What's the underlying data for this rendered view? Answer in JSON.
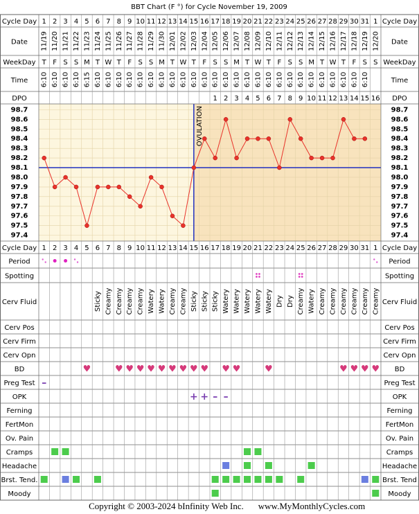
{
  "title": "BBT Chart (F °) for Cycle November 19, 2009",
  "header_rows": [
    {
      "label": "Cycle Day",
      "values": [
        1,
        2,
        3,
        4,
        5,
        6,
        7,
        8,
        9,
        10,
        11,
        12,
        13,
        14,
        15,
        16,
        17,
        18,
        19,
        20,
        21,
        22,
        23,
        24,
        25,
        26,
        27,
        28,
        29,
        30,
        31,
        1
      ]
    },
    {
      "label": "Date",
      "values": [
        "11/19",
        "11/20",
        "11/21",
        "11/22",
        "11/23",
        "11/24",
        "11/25",
        "11/26",
        "11/27",
        "11/28",
        "11/29",
        "11/30",
        "12/01",
        "12/02",
        "12/03",
        "12/04",
        "12/05",
        "12/06",
        "12/07",
        "12/08",
        "12/09",
        "12/10",
        "12/11",
        "12/12",
        "12/13",
        "12/14",
        "12/15",
        "12/16",
        "12/17",
        "12/18",
        "12/19",
        "12/20"
      ]
    },
    {
      "label": "WeekDay",
      "values": [
        "T",
        "F",
        "S",
        "S",
        "M",
        "T",
        "W",
        "T",
        "F",
        "S",
        "S",
        "M",
        "T",
        "W",
        "T",
        "F",
        "S",
        "S",
        "M",
        "T",
        "W",
        "T",
        "F",
        "S",
        "S",
        "M",
        "T",
        "W",
        "T",
        "F",
        "S",
        "S"
      ]
    },
    {
      "label": "Time",
      "values": [
        "6:10",
        "6:10",
        "6:10",
        "6:10",
        "6:15",
        "6:10",
        "6:10",
        "6:10",
        "6:10",
        "6:10",
        "6:10",
        "6:10",
        "6:10",
        "6:10",
        "6:10",
        "6:10",
        "6:10",
        "6:10",
        "6:10",
        "6:10",
        "6:10",
        "6:10",
        "6:10",
        "6:10",
        "6:10",
        "6:10",
        "6:10",
        "6:10",
        "6:10",
        "6:10",
        "6:10",
        null
      ]
    },
    {
      "label": "DPO",
      "values": [
        null,
        null,
        null,
        null,
        null,
        null,
        null,
        null,
        null,
        null,
        null,
        null,
        null,
        null,
        null,
        null,
        1,
        2,
        3,
        4,
        5,
        6,
        7,
        8,
        9,
        10,
        11,
        12,
        13,
        14,
        15,
        16
      ]
    }
  ],
  "chart_data": {
    "type": "line",
    "values": [
      98.2,
      97.9,
      98.0,
      97.9,
      97.5,
      97.9,
      97.9,
      97.9,
      97.8,
      97.7,
      98.0,
      97.9,
      97.6,
      97.5,
      98.1,
      98.4,
      98.2,
      98.6,
      98.2,
      98.4,
      98.4,
      98.4,
      98.1,
      98.6,
      98.4,
      98.2,
      98.2,
      98.2,
      98.6,
      98.4,
      98.4,
      null
    ],
    "color": "#e8322a",
    "ylim": [
      97.34,
      98.76
    ],
    "yticks": [
      98.7,
      98.6,
      98.5,
      98.4,
      98.3,
      98.2,
      98.1,
      {
        "value": 98,
        "label": "98.0"
      },
      97.9,
      97.8,
      97.7,
      97.6,
      97.5,
      97.4
    ],
    "grid": true,
    "cover_line": 98.1,
    "cover_color": "#2030c0",
    "ovulation": {
      "label": "OVULATION",
      "day": 15
    }
  },
  "obs_rows": [
    {
      "label": "Period",
      "kind": "period",
      "cells": [
        "light",
        "heavy",
        "heavy",
        "light",
        null,
        null,
        null,
        null,
        null,
        null,
        null,
        null,
        null,
        null,
        null,
        null,
        null,
        null,
        null,
        null,
        null,
        null,
        null,
        null,
        null,
        null,
        null,
        null,
        null,
        null,
        null,
        "light"
      ]
    },
    {
      "label": "Spotting",
      "kind": "spot",
      "cells": [
        null,
        null,
        null,
        null,
        null,
        null,
        null,
        null,
        null,
        null,
        null,
        null,
        null,
        null,
        null,
        null,
        null,
        null,
        null,
        null,
        "spot",
        null,
        null,
        null,
        "spot",
        null,
        null,
        null,
        null,
        null,
        null,
        null
      ]
    },
    {
      "label": "Cerv Fluid",
      "kind": "text",
      "cells": [
        null,
        null,
        null,
        null,
        null,
        "Sticky",
        "Creamy",
        "Creamy",
        "Creamy",
        "Creamy",
        "Watery",
        "Watery",
        "Creamy",
        "Creamy",
        "Sticky",
        "Sticky",
        "Sticky",
        "Watery",
        "Watery",
        "Watery",
        "Watery",
        "Watery",
        "Dry",
        "Dry",
        "Creamy",
        "Watery",
        "Creamy",
        "Creamy",
        "Creamy",
        "Creamy",
        "Creamy",
        "Creamy"
      ]
    },
    {
      "label": "Cerv Pos",
      "kind": "glyph",
      "cells": []
    },
    {
      "label": "Cerv Firm",
      "kind": "glyph",
      "cells": []
    },
    {
      "label": "Cerv Opn",
      "kind": "glyph",
      "cells": []
    },
    {
      "label": "BD",
      "kind": "glyph",
      "color": "#d63a7a",
      "cells": [
        null,
        null,
        null,
        null,
        "♥",
        null,
        null,
        "♥",
        "♥",
        "♥",
        "♥",
        "♥",
        "♥",
        "♥",
        "♥",
        "♥",
        null,
        "♥",
        "♥",
        null,
        null,
        "♥",
        null,
        null,
        null,
        null,
        null,
        null,
        "♥",
        "♥",
        "♥",
        "♥"
      ]
    },
    {
      "label": "Preg Test",
      "kind": "glyph",
      "color": "#7a3fb0",
      "cells": [
        "–"
      ]
    },
    {
      "label": "OPK",
      "kind": "glyph",
      "color": "#7a3fb0",
      "cells": [
        null,
        null,
        null,
        null,
        null,
        null,
        null,
        null,
        null,
        null,
        null,
        null,
        null,
        null,
        "+",
        "+",
        "–",
        "–"
      ]
    },
    {
      "label": "Ferning",
      "kind": "glyph",
      "cells": []
    },
    {
      "label": "FertMon",
      "kind": "glyph",
      "cells": []
    },
    {
      "label": "Ov. Pain",
      "kind": "glyph",
      "cells": []
    },
    {
      "label": "Cramps",
      "kind": "box",
      "cells": [
        null,
        "#4ccc4c",
        "#4ccc4c",
        null,
        null,
        null,
        null,
        null,
        null,
        null,
        null,
        null,
        null,
        null,
        null,
        null,
        null,
        null,
        null,
        "#4ccc4c",
        "#4ccc4c"
      ]
    },
    {
      "label": "Headache",
      "kind": "box",
      "cells": [
        null,
        null,
        null,
        null,
        null,
        null,
        null,
        null,
        null,
        null,
        null,
        null,
        null,
        null,
        null,
        null,
        null,
        "#6b7fe0",
        null,
        "#4ccc4c",
        null,
        "#4ccc4c",
        null,
        null,
        null,
        "#4ccc4c"
      ]
    },
    {
      "label": "Brst. Tend.",
      "right_label": "Brst. Tend",
      "kind": "box",
      "cells": [
        "#4ccc4c",
        null,
        "#6b7fe0",
        "#4ccc4c",
        null,
        "#4ccc4c",
        null,
        null,
        null,
        null,
        null,
        null,
        null,
        null,
        null,
        null,
        "#4ccc4c",
        "#4ccc4c",
        "#4ccc4c",
        "#4ccc4c",
        "#4ccc4c",
        "#4ccc4c",
        "#4ccc4c",
        null,
        "#4ccc4c",
        null,
        null,
        null,
        null,
        null,
        "#6b7fe0",
        "#4ccc4c"
      ]
    },
    {
      "label": "Moody",
      "kind": "box",
      "cells": [
        null,
        null,
        null,
        null,
        null,
        null,
        null,
        null,
        null,
        null,
        null,
        null,
        null,
        null,
        null,
        null,
        "#4ccc4c",
        null,
        null,
        null,
        null,
        null,
        null,
        null,
        null,
        null,
        null,
        null,
        null,
        null,
        null,
        "#4ccc4c"
      ]
    }
  ],
  "footer": {
    "copyright": "Copyright © 2003-2024 bInfinity Web Inc.",
    "site": "www.MyMonthlyCycles.com"
  }
}
